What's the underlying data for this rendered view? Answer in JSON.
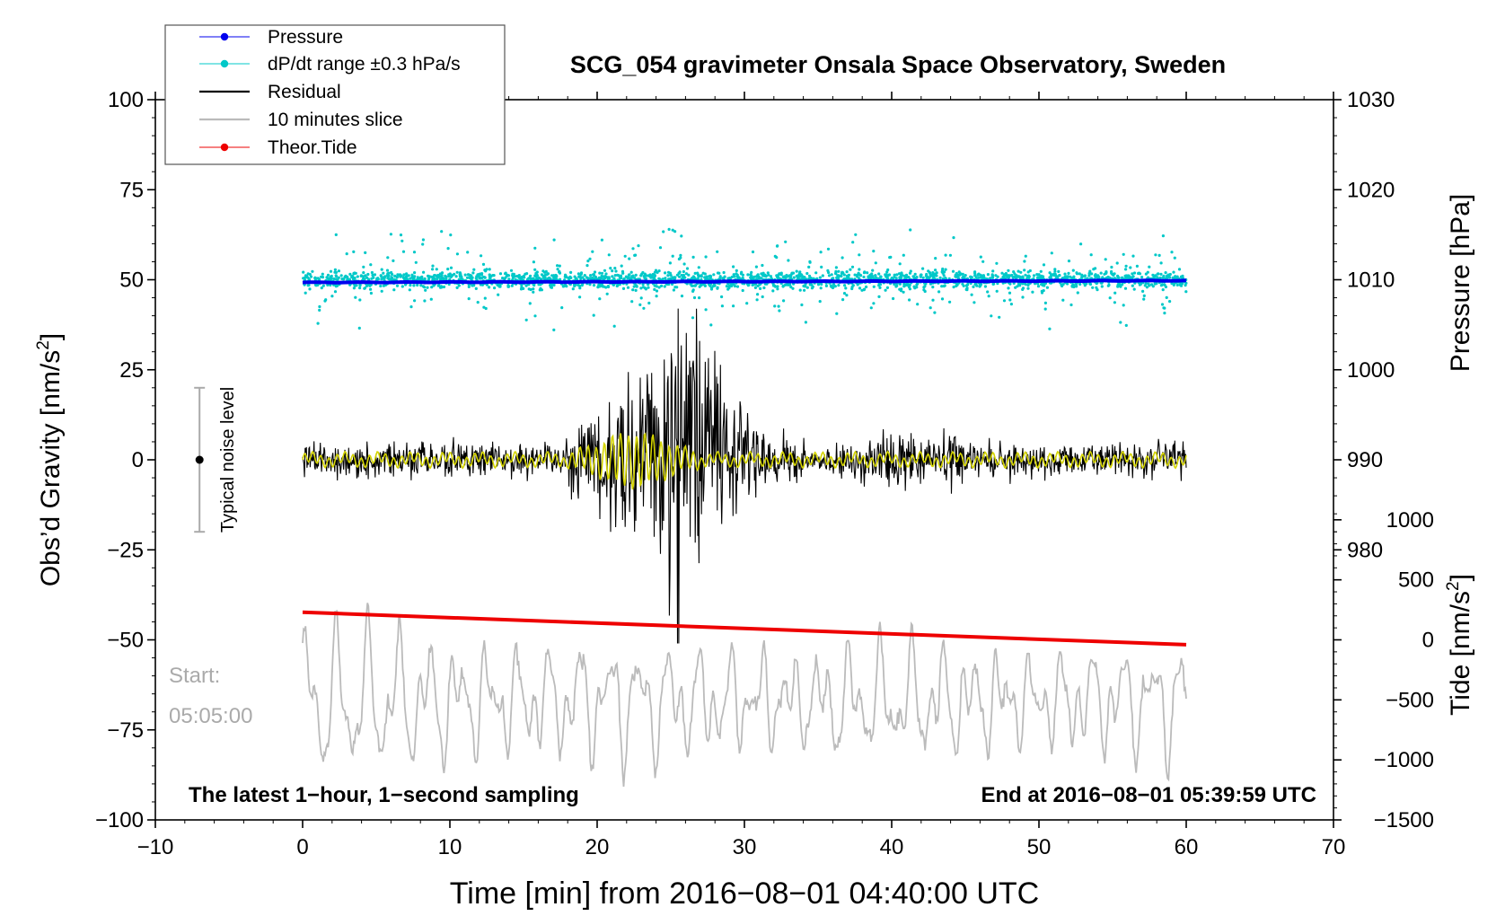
{
  "chart_data": {
    "type": "line",
    "title": "SCG_054 gravimeter Onsala Space Observatory, Sweden",
    "xlabel": "Time [min] from 2016−08−01 04:40:00 UTC",
    "ylabel_left": "Obs’d Gravity [nm/s²]",
    "ylabel_left_base": "Obs’d Gravity [nm/s",
    "ylabel_left_sup": "2",
    "ylabel_left_close": "]",
    "ylabel_right_top": "Pressure [hPa]",
    "ylabel_right_bottom": "Tide [nm/s²]",
    "ylabel_right_bottom_base": "Tide [nm/s",
    "ylabel_right_bottom_sup": "2",
    "ylabel_right_bottom_close": "]",
    "xlim": [
      -10,
      70
    ],
    "ylim_left": [
      -100,
      100
    ],
    "ylim_pressure": [
      950,
      1030
    ],
    "ylim_tide": [
      -1500,
      4500
    ],
    "x_ticks": [
      -10,
      0,
      10,
      20,
      30,
      40,
      50,
      60,
      70
    ],
    "x_tick_labels": [
      "−10",
      "0",
      "10",
      "20",
      "30",
      "40",
      "50",
      "60",
      "70"
    ],
    "y_left_ticks": [
      100,
      75,
      50,
      25,
      0,
      -25,
      -50,
      -75,
      -100
    ],
    "y_left_tick_labels": [
      "100",
      "75",
      "50",
      "25",
      "0",
      "−25",
      "−50",
      "−75",
      "−100"
    ],
    "y_pressure_ticks": [
      1030,
      1020,
      1010,
      1000,
      990,
      980
    ],
    "y_pressure_tick_labels": [
      "1030",
      "1020",
      "1010",
      "1000",
      "990",
      "980"
    ],
    "y_tide_ticks": [
      1000,
      500,
      0,
      -500,
      -1000,
      -1500
    ],
    "y_tide_tick_labels": [
      "1000",
      "500",
      "0",
      "−500",
      "−1000",
      "−1500"
    ],
    "legend": {
      "position": "top-left",
      "entries": [
        {
          "label": "Pressure",
          "color": "#0000ee",
          "marker": "dot"
        },
        {
          "label": "dP/dt range ±0.3 hPa/s",
          "color": "#00c8c8",
          "marker": "dot"
        },
        {
          "label": "Residual",
          "color": "#000000",
          "marker": "line"
        },
        {
          "label": "10 minutes slice",
          "color": "#bbbbbb",
          "marker": "line"
        },
        {
          "label": "Theor.Tide",
          "color": "#ee0000",
          "marker": "dot"
        }
      ]
    },
    "noise_bar": {
      "label": "Typical noise level",
      "x": -7,
      "center": 0,
      "range": [
        -20,
        20
      ]
    },
    "annotations": {
      "start_label": "Start:",
      "start_time": "05:05:00",
      "bottom_left": "The latest 1−hour, 1−second sampling",
      "bottom_right": "End at 2016−08−01 05:39:59 UTC"
    },
    "series": [
      {
        "name": "Pressure",
        "axis": "pressure",
        "color": "#0000ee",
        "x_range": [
          0,
          60
        ],
        "start": 1009.7,
        "end": 1009.9
      },
      {
        "name": "dP/dt range ±0.3 hPa/s",
        "axis": "left",
        "color": "#00c8c8",
        "center": 50,
        "spread": 5
      },
      {
        "name": "Residual",
        "axis": "left",
        "color": "#000000",
        "x_range": [
          0,
          60
        ],
        "baseline": 0,
        "peak_time": 25.5,
        "peak_min": -51,
        "peak_max": 42
      },
      {
        "name": "Residual (smoothed)",
        "axis": "left",
        "color": "#d4d400",
        "x_range": [
          0,
          60
        ],
        "baseline": 0
      },
      {
        "name": "10 minutes slice",
        "axis": "left",
        "color": "#bbbbbb",
        "x_range": [
          0,
          60
        ],
        "baseline": -67,
        "min": -98,
        "max": -34
      },
      {
        "name": "Theor.Tide",
        "axis": "tide",
        "color": "#ee0000",
        "x_range": [
          0,
          60
        ],
        "start": 230,
        "end": -40
      }
    ]
  }
}
